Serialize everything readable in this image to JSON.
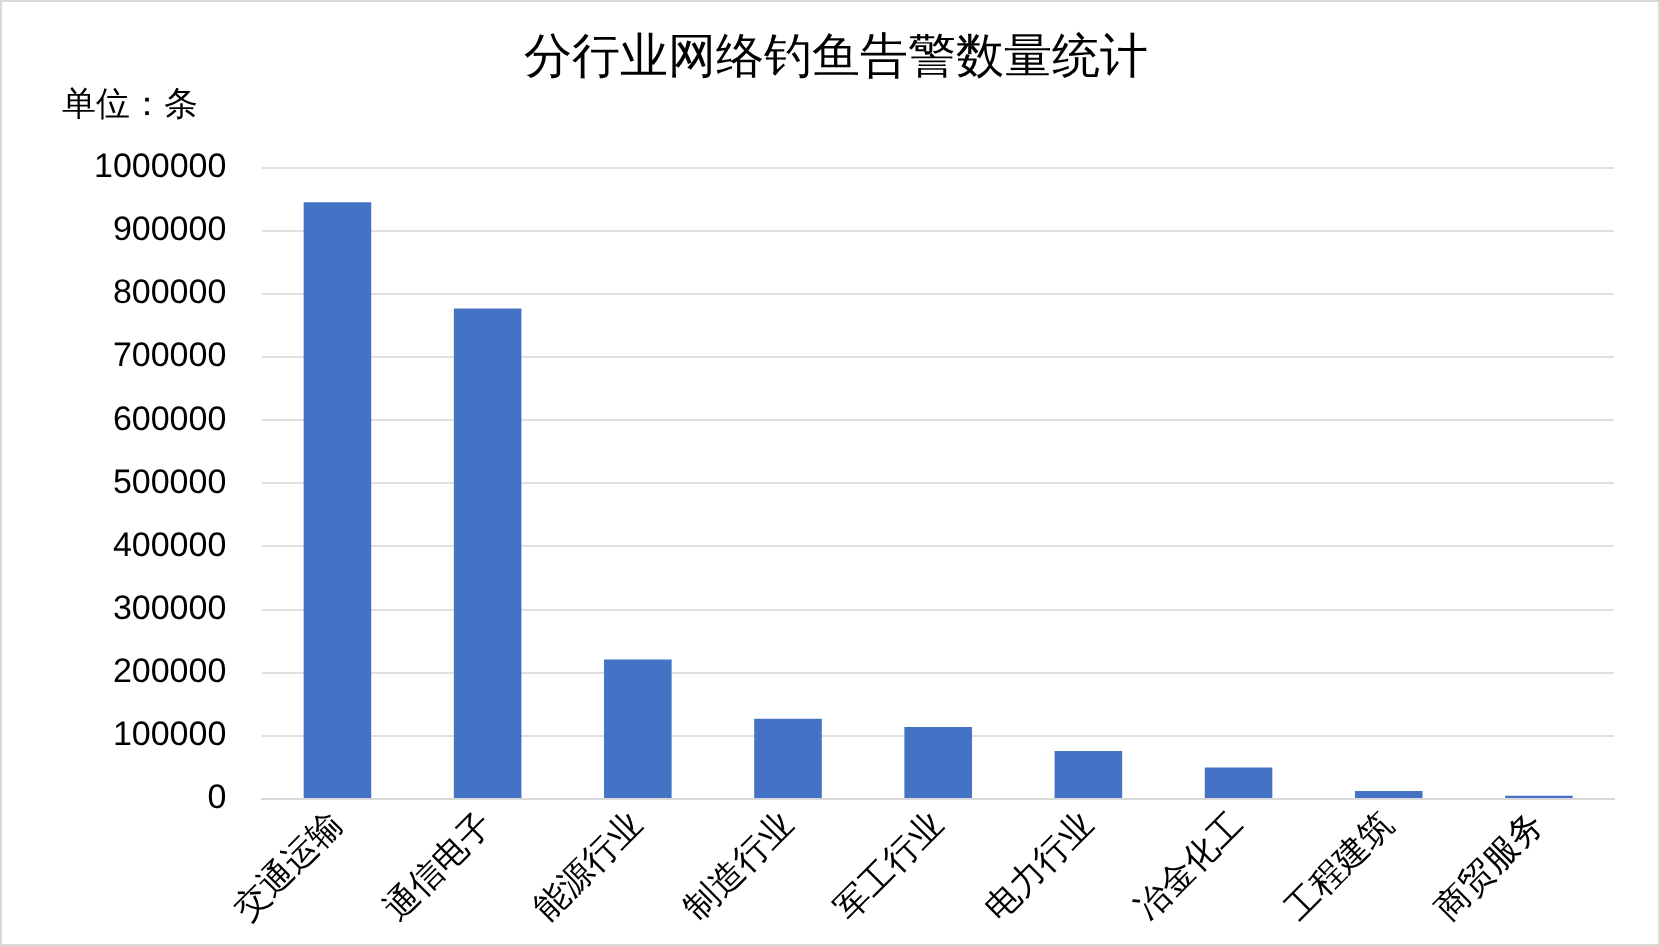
{
  "chart_data": {
    "type": "bar",
    "title": "分行业网络钓鱼告警数量统计",
    "ylabel": "单位：条",
    "categories": [
      "交通运输",
      "通信电子",
      "能源行业",
      "制造行业",
      "军工行业",
      "电力行业",
      "冶金化工",
      "工程建筑",
      "商贸服务"
    ],
    "values": [
      945000,
      777000,
      221000,
      127000,
      114000,
      76000,
      50000,
      12500,
      5000
    ],
    "color": "#4472c4",
    "ylim": [
      0,
      1000000
    ],
    "yticks": [
      0,
      100000,
      200000,
      300000,
      400000,
      500000,
      600000,
      700000,
      800000,
      900000,
      1000000
    ],
    "grid": "y"
  }
}
